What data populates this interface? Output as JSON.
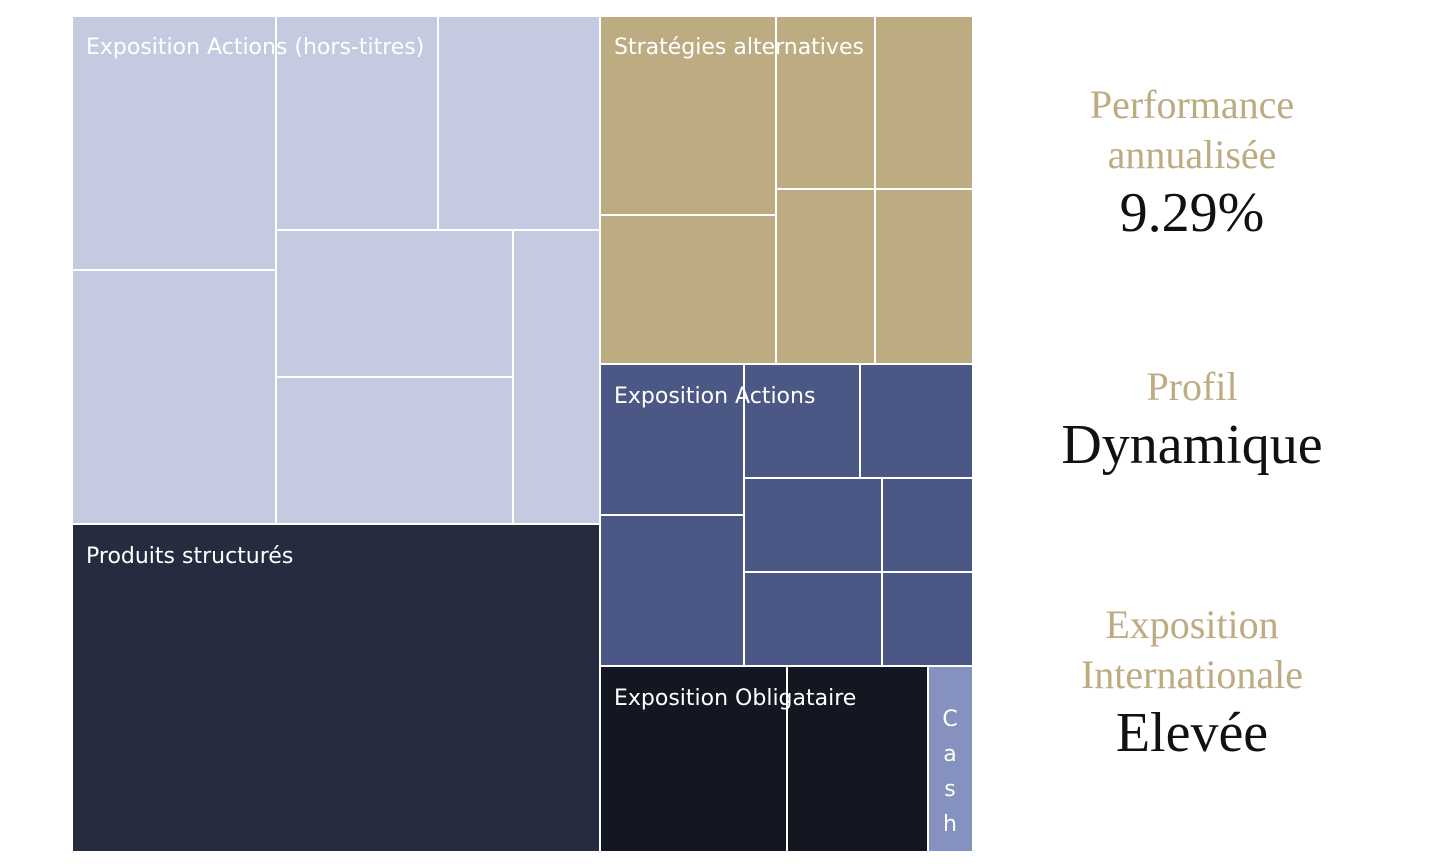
{
  "colors": {
    "actions_hors_titres": "#c4cadf",
    "strategies_alternatives": "#bdab82",
    "exposition_actions": "#4b5886",
    "produits_structures": "#252c40",
    "exposition_obligataire": "#121721",
    "cash": "#8592bf",
    "kpi_label": "#bdab82",
    "kpi_value": "#111111"
  },
  "chart_data": {
    "type": "treemap",
    "groups": [
      {
        "name": "Exposition Actions (hors-titres)",
        "color_key": "actions_hors_titres",
        "tiles": 8
      },
      {
        "name": "Stratégies alternatives",
        "color_key": "strategies_alternatives",
        "tiles": 6
      },
      {
        "name": "Exposition Actions",
        "color_key": "exposition_actions",
        "tiles": 9
      },
      {
        "name": "Produits structurés",
        "color_key": "produits_structures",
        "tiles": 1
      },
      {
        "name": "Exposition Obligataire",
        "color_key": "exposition_obligataire",
        "tiles": 2
      },
      {
        "name": "Cash",
        "color_key": "cash",
        "tiles": 1
      }
    ]
  },
  "kpis": {
    "performance_label_1": "Performance",
    "performance_label_2": "annualisée",
    "performance_value": "9.29%",
    "profil_label": "Profil",
    "profil_value": "Dynamique",
    "exposition_label_1": "Exposition",
    "exposition_label_2": "Internationale",
    "exposition_value": "Elevée"
  }
}
